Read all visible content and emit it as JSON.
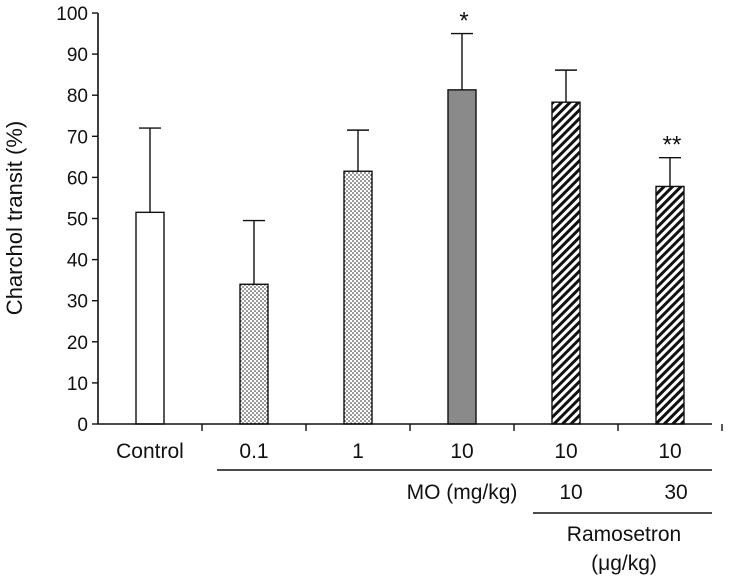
{
  "chart_data": {
    "type": "bar",
    "ylabel": "Charchol transit (%)",
    "ylim": [
      0,
      100
    ],
    "yticks": [
      0,
      10,
      20,
      30,
      40,
      50,
      60,
      70,
      80,
      90,
      100
    ],
    "categories": [
      "Control",
      "0.1",
      "1",
      "10",
      "10",
      "10"
    ],
    "values": [
      51.5,
      34,
      61.5,
      81.3,
      78.3,
      57.8
    ],
    "errors": [
      20.5,
      15.5,
      10,
      13.7,
      7.8,
      7
    ],
    "fills": [
      "white",
      "dots",
      "dots",
      "gray",
      "hatch",
      "hatch"
    ],
    "annotations": [
      "",
      "",
      "",
      "*",
      "",
      "**"
    ],
    "mo_label": "MO (mg/kg)",
    "ramosetron_doses": [
      "10",
      "30"
    ],
    "ramosetron_label_line1": "Ramosetron",
    "ramosetron_label_line2": "(μg/kg)"
  },
  "colors": {
    "axis": "#111111",
    "gray_bar": "#8a8a8a",
    "white_bar": "#ffffff"
  }
}
